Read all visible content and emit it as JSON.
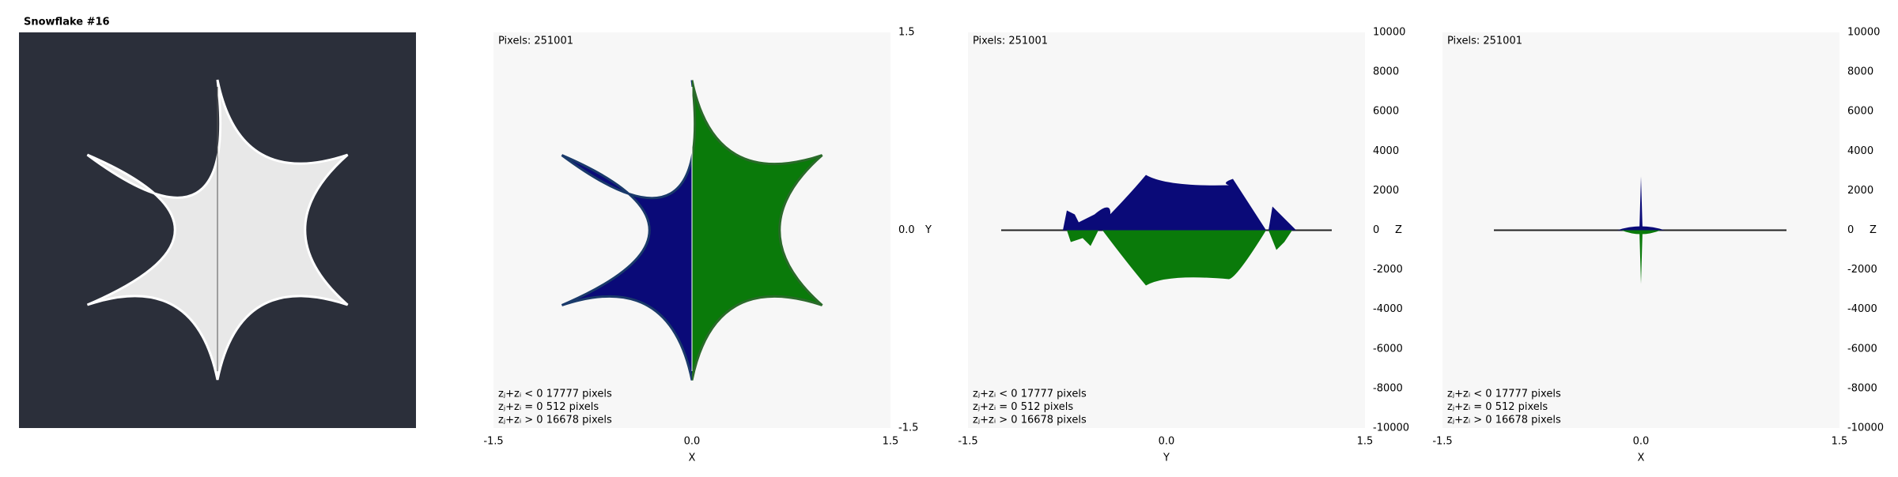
{
  "window": {
    "title": "Snowflake #16"
  },
  "panels": [
    {
      "pixels": "Pixels: 251001",
      "xlim": [
        -1.5,
        1.5
      ],
      "ylim": [
        -1.5,
        1.5
      ],
      "x_axis": {
        "label": "X",
        "ticks": [
          -1.5,
          {
            "value": 0,
            "label": "0.0"
          },
          1.5
        ]
      },
      "y_axis": {
        "label": "Y",
        "ticks": [
          1.5,
          {
            "value": 0,
            "label": "0.0"
          },
          -1.5
        ]
      },
      "legend": [
        "zⱼ+zᵢ < 0  17777 pixels",
        "zⱼ+zᵢ = 0  512 pixels",
        "zⱼ+zᵢ > 0  16678 pixels"
      ]
    },
    {
      "pixels": "Pixels: 251001",
      "xlim": [
        -1.5,
        1.5
      ],
      "ylim": [
        -10000,
        10000
      ],
      "x_axis": {
        "label": "Y",
        "ticks": [
          -1.5,
          {
            "value": 0,
            "label": "0.0"
          },
          1.5
        ]
      },
      "y_axis": {
        "label": "Z",
        "ticks": [
          10000,
          8000,
          6000,
          4000,
          2000,
          0,
          -2000,
          -4000,
          -6000,
          -8000,
          -10000
        ]
      },
      "legend": [
        "zⱼ+zᵢ < 0  17777 pixels",
        "zⱼ+zᵢ = 0  512 pixels",
        "zⱼ+zᵢ > 0  16678 pixels"
      ]
    },
    {
      "pixels": "Pixels: 251001",
      "xlim": [
        -1.5,
        1.5
      ],
      "ylim": [
        -10000,
        10000
      ],
      "x_axis": {
        "label": "X",
        "ticks": [
          -1.5,
          {
            "value": 0,
            "label": "0.0"
          },
          1.5
        ]
      },
      "y_axis": {
        "label": "Z",
        "ticks": [
          10000,
          8000,
          6000,
          4000,
          2000,
          0,
          -2000,
          -4000,
          -6000,
          -8000,
          -10000
        ]
      },
      "legend": [
        "zⱼ+zᵢ < 0  17777 pixels",
        "zⱼ+zᵢ = 0  512 pixels",
        "zⱼ+zᵢ > 0  16678 pixels"
      ]
    }
  ]
}
